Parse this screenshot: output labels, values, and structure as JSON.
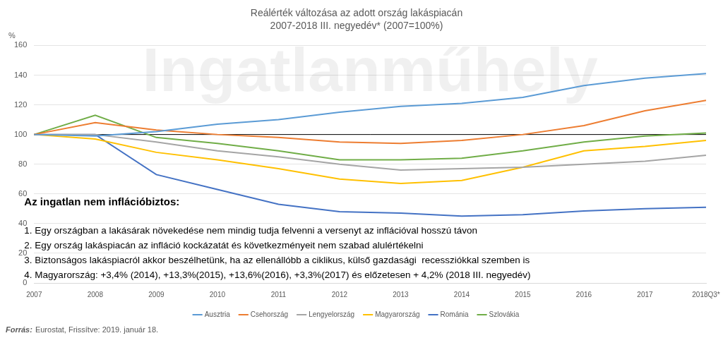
{
  "chart_data": {
    "type": "line",
    "title": "Reálérték változása az adott ország lakáspiacán",
    "subtitle": "2007-2018 III. negyedév* (2007=100%)",
    "y_label": "%",
    "categories": [
      "2007",
      "2008",
      "2009",
      "2010",
      "2011",
      "2012",
      "2013",
      "2014",
      "2015",
      "2016",
      "2017",
      "2018Q3*"
    ],
    "series": [
      {
        "name": "Ausztria",
        "color": "#5b9bd5",
        "values": [
          100,
          99,
          102,
          107,
          110,
          115,
          119,
          121,
          125,
          133,
          138,
          141
        ]
      },
      {
        "name": "Csehország",
        "color": "#ed7d31",
        "values": [
          100,
          108,
          103,
          100,
          98,
          95,
          94,
          96,
          100,
          106,
          116,
          123
        ]
      },
      {
        "name": "Lengyelország",
        "color": "#a5a5a5",
        "values": [
          100,
          100,
          95,
          89,
          85,
          80,
          76,
          77,
          78,
          80,
          82,
          86
        ]
      },
      {
        "name": "Magyarország",
        "color": "#ffc000",
        "values": [
          100,
          97,
          88,
          83,
          77,
          70,
          67,
          69,
          78,
          89,
          92,
          96
        ]
      },
      {
        "name": "Románia",
        "color": "#4472c4",
        "values": [
          100,
          100,
          73,
          63,
          53,
          48,
          47,
          45,
          46,
          48.5,
          50,
          51
        ]
      },
      {
        "name": "Szlovákia",
        "color": "#70ad47",
        "values": [
          100,
          113,
          98,
          94,
          89,
          83,
          83,
          84,
          89,
          95,
          99,
          101
        ]
      }
    ],
    "ylim": [
      0,
      160
    ],
    "yticks": [
      0,
      20,
      40,
      60,
      80,
      100,
      120,
      140,
      160
    ],
    "grid": true,
    "legend": "bottom",
    "reference_line": 100,
    "annotation": {
      "heading": "Az ingatlan nem inflációbiztos:",
      "lines": [
        "1. Egy országban a lakásárak növekedése nem mindig tudja felvenni a versenyt az inflációval hosszú távon",
        "2. Egy ország lakáspiacán az infláció kockázatát és következményeit nem szabad alulértékelni",
        "3. Biztonságos lakáspiacról akkor beszélhetünk, ha az ellenállóbb a ciklikus, külső gazdasági  recessziókkal szemben is",
        "4. Magyarország: +3,4% (2014), +13,3%(2015), +13,6%(2016), +3,3%(2017) és előzetesen + 4,2% (2018 III. negyedév)"
      ]
    },
    "watermark": "Ingatlanműhely",
    "source_label": "Forrás:",
    "source": "Eurostat, Frissítve: 2019. január 18."
  }
}
